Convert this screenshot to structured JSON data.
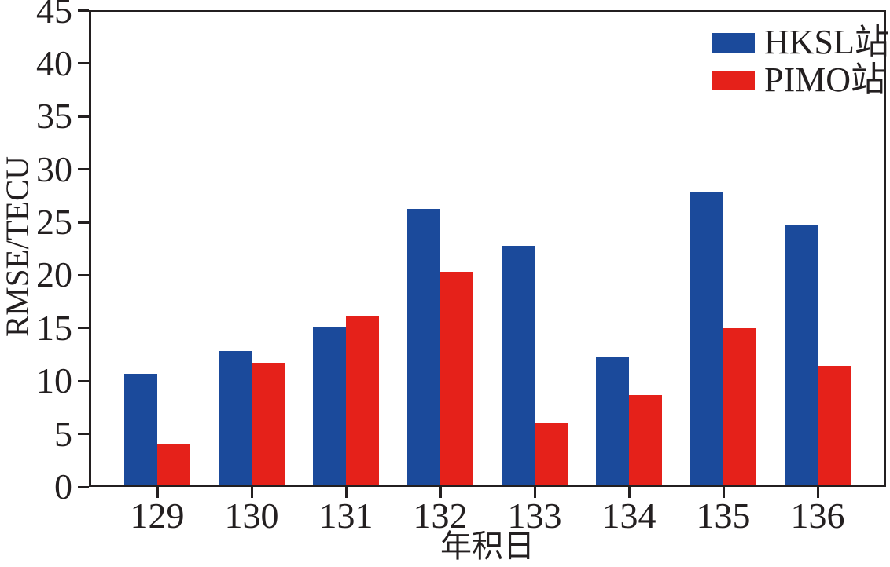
{
  "figure": {
    "background": "#ffffff",
    "axis_color": "#231f20"
  },
  "chart_data": {
    "type": "bar",
    "title": "",
    "xlabel": "年积日",
    "ylabel": "RMSE/TECU",
    "categories": [
      "129",
      "130",
      "131",
      "132",
      "133",
      "134",
      "135",
      "136"
    ],
    "series": [
      {
        "name": "HKSL站",
        "color": "#1b4a9b",
        "values": [
          10.7,
          12.8,
          15.1,
          26.3,
          22.8,
          12.3,
          27.9,
          24.7
        ]
      },
      {
        "name": "PIMO站",
        "color": "#e5211a",
        "values": [
          4.1,
          11.7,
          16.1,
          20.3,
          6.1,
          8.7,
          15.0,
          11.4
        ]
      }
    ],
    "ylim": [
      0,
      45
    ],
    "yticks": [
      0,
      5,
      10,
      15,
      20,
      25,
      30,
      35,
      40,
      45
    ],
    "grid": false,
    "legend_position": "top-right"
  }
}
